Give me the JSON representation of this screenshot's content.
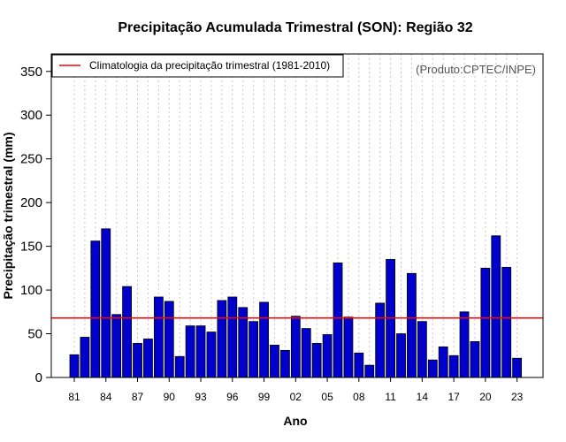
{
  "chart_data": {
    "type": "bar",
    "title": "Precipitação Acumulada Trimestral (SON): Região 32",
    "xlabel": "Ano",
    "ylabel": "Precipitação trimestral (mm)",
    "ylim": [
      0,
      370
    ],
    "yticks": [
      0,
      50,
      100,
      150,
      200,
      250,
      300,
      350
    ],
    "xtick_labels": [
      "81",
      "84",
      "87",
      "90",
      "93",
      "96",
      "99",
      "02",
      "05",
      "08",
      "11",
      "14",
      "17",
      "20",
      "23"
    ],
    "categories": [
      "1981",
      "1982",
      "1983",
      "1984",
      "1985",
      "1986",
      "1987",
      "1988",
      "1989",
      "1990",
      "1991",
      "1992",
      "1993",
      "1994",
      "1995",
      "1996",
      "1997",
      "1998",
      "1999",
      "2000",
      "2001",
      "2002",
      "2003",
      "2004",
      "2005",
      "2006",
      "2007",
      "2008",
      "2009",
      "2010",
      "2011",
      "2012",
      "2013",
      "2014",
      "2015",
      "2016",
      "2017",
      "2018",
      "2019",
      "2020",
      "2021",
      "2022",
      "2023"
    ],
    "values": [
      26,
      46,
      156,
      170,
      72,
      104,
      39,
      44,
      92,
      87,
      24,
      59,
      59,
      52,
      88,
      92,
      80,
      64,
      86,
      37,
      31,
      70,
      56,
      39,
      49,
      131,
      69,
      28,
      14,
      85,
      135,
      50,
      119,
      64,
      20,
      35,
      25,
      75,
      41,
      125,
      162,
      126,
      22
    ],
    "bar_color": "#0000CD",
    "climatology": {
      "value": 68,
      "color": "#FF0000",
      "label": "Climatologia da precipitação trimestral (1981-2010)"
    },
    "source": "(Produto:CPTEC/INPE)",
    "grid": "vertical dotted",
    "legend_position": "top-left"
  }
}
